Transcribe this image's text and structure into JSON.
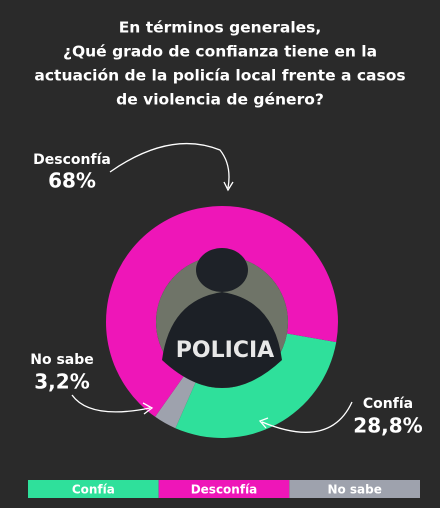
{
  "chart_data": {
    "type": "pie",
    "title": [
      "En términos generales,",
      "¿Qué grado de confianza tiene en la",
      "actuación de la policía local frente a casos",
      "de violencia de género?"
    ],
    "categories": [
      "Confía",
      "Desconfía",
      "No sabe"
    ],
    "values": [
      28.8,
      68,
      3.2
    ],
    "value_labels": [
      "28,8%",
      "68%",
      "3,2%"
    ],
    "colors": [
      "#2fe09b",
      "#ee16b8",
      "#9ea2ad"
    ],
    "center_image_text": "POLICIA"
  }
}
